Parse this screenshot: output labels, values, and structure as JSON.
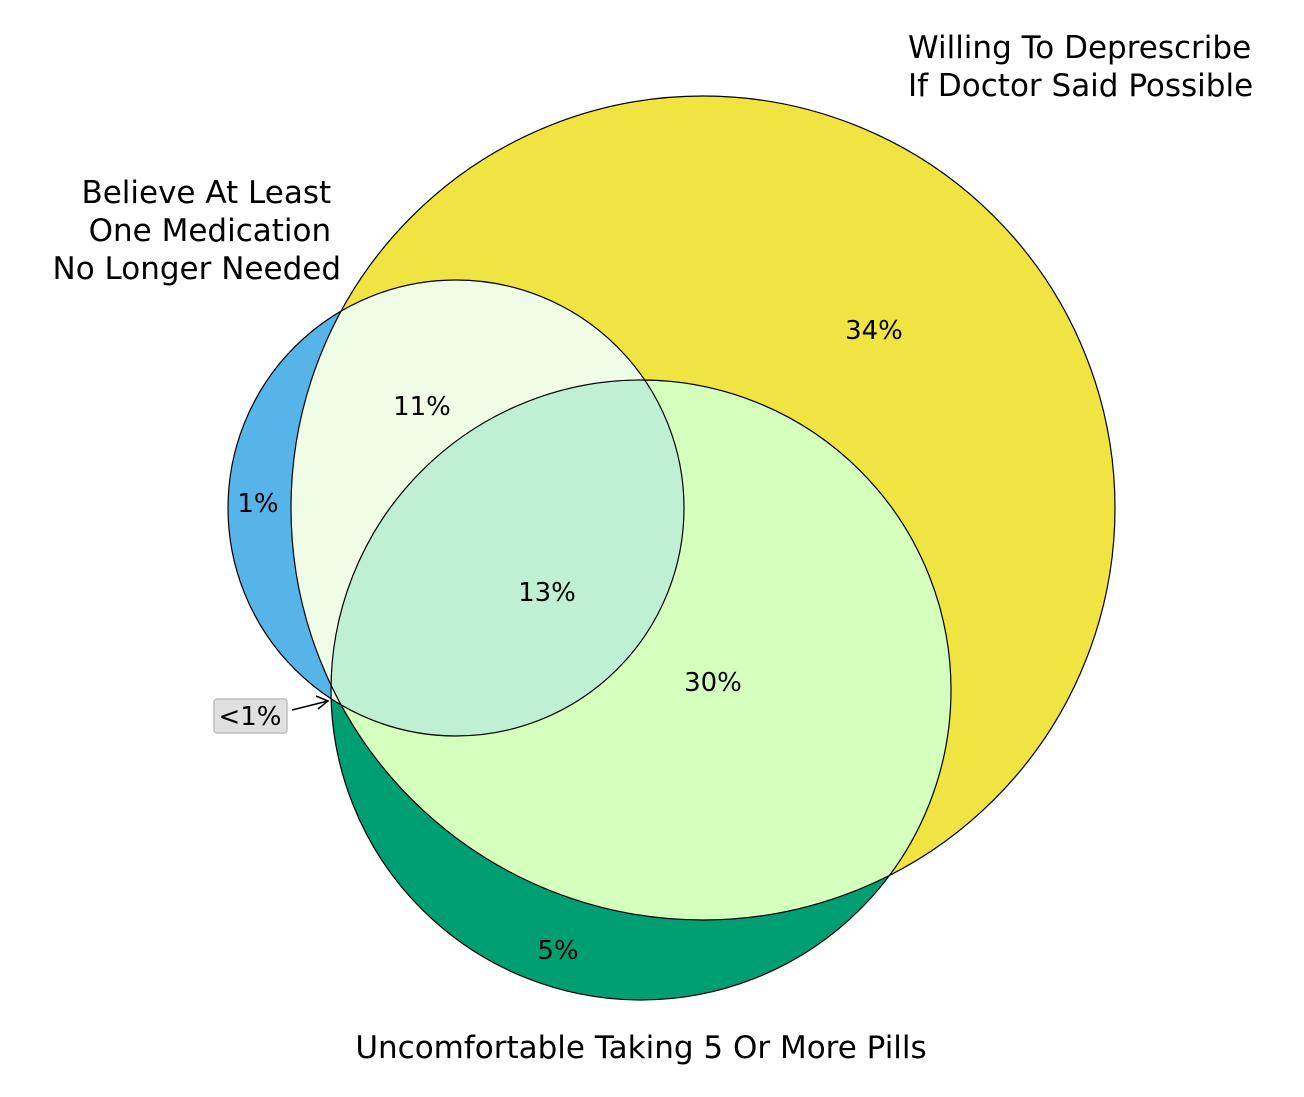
{
  "sets": {
    "willing": {
      "label_lines": [
        "Willing To Deprescribe",
        "If Doctor Said Possible"
      ]
    },
    "believe": {
      "label_lines": [
        "Believe At Least",
        "One Medication",
        "No Longer Needed"
      ]
    },
    "uncomfortable": {
      "label_lines": [
        "Uncomfortable Taking 5 Or More Pills"
      ]
    }
  },
  "regions": {
    "willing_only": "34%",
    "believe_only": "1%",
    "uncomfortable_only": "5%",
    "believe_and_willing": "11%",
    "willing_and_uncomfortable": "30%",
    "all_three": "13%",
    "believe_and_uncomfortable": "<1%"
  },
  "colors": {
    "willing_only": "#f0e442",
    "believe_only": "#56b4e9",
    "uncomfortable_only": "#009e73",
    "believe_and_willing": "#f0fde6",
    "willing_and_uncomfortable": "#d4ffbc",
    "all_three": "#c0f0d4",
    "callout_box": "#e0e0e0"
  }
}
